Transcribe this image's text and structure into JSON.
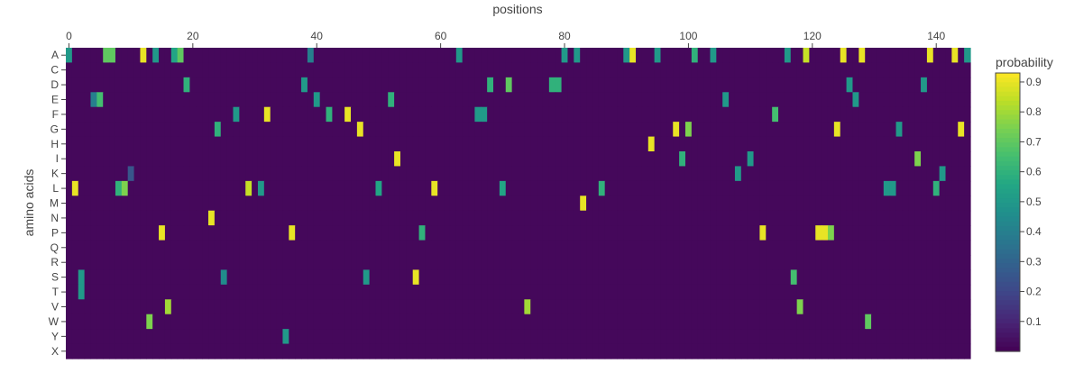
{
  "chart_data": {
    "type": "heatmap",
    "title": "",
    "xlabel": "positions",
    "ylabel": "amino acids",
    "x_axis_side": "top",
    "x_range": [
      0,
      145
    ],
    "x_ticks": [
      0,
      20,
      40,
      60,
      80,
      100,
      120,
      140
    ],
    "y_categories": [
      "A",
      "C",
      "D",
      "E",
      "F",
      "G",
      "H",
      "I",
      "K",
      "L",
      "M",
      "N",
      "P",
      "Q",
      "R",
      "S",
      "T",
      "V",
      "W",
      "Y",
      "X"
    ],
    "colorbar": {
      "title": "probability",
      "range": [
        0,
        0.93
      ],
      "ticks": [
        0.1,
        0.2,
        0.3,
        0.4,
        0.5,
        0.6,
        0.7,
        0.8,
        0.9
      ],
      "colorscale": "viridis"
    },
    "background_probability": 0.02,
    "high_cells": [
      {
        "x": 0,
        "y": "A",
        "v": 0.5
      },
      {
        "x": 1,
        "y": "L",
        "v": 0.9
      },
      {
        "x": 2,
        "y": "S",
        "v": 0.5
      },
      {
        "x": 2,
        "y": "T",
        "v": 0.5
      },
      {
        "x": 4,
        "y": "E",
        "v": 0.4
      },
      {
        "x": 5,
        "y": "E",
        "v": 0.65
      },
      {
        "x": 6,
        "y": "A",
        "v": 0.7
      },
      {
        "x": 7,
        "y": "A",
        "v": 0.7
      },
      {
        "x": 8,
        "y": "L",
        "v": 0.6
      },
      {
        "x": 9,
        "y": "L",
        "v": 0.75
      },
      {
        "x": 10,
        "y": "K",
        "v": 0.25
      },
      {
        "x": 12,
        "y": "A",
        "v": 0.9
      },
      {
        "x": 13,
        "y": "W",
        "v": 0.75
      },
      {
        "x": 14,
        "y": "A",
        "v": 0.5
      },
      {
        "x": 15,
        "y": "P",
        "v": 0.9
      },
      {
        "x": 16,
        "y": "V",
        "v": 0.8
      },
      {
        "x": 17,
        "y": "A",
        "v": 0.55
      },
      {
        "x": 18,
        "y": "A",
        "v": 0.7
      },
      {
        "x": 19,
        "y": "D",
        "v": 0.6
      },
      {
        "x": 23,
        "y": "N",
        "v": 0.9
      },
      {
        "x": 24,
        "y": "G",
        "v": 0.6
      },
      {
        "x": 25,
        "y": "S",
        "v": 0.45
      },
      {
        "x": 27,
        "y": "F",
        "v": 0.5
      },
      {
        "x": 29,
        "y": "L",
        "v": 0.85
      },
      {
        "x": 31,
        "y": "L",
        "v": 0.5
      },
      {
        "x": 32,
        "y": "F",
        "v": 0.9
      },
      {
        "x": 35,
        "y": "Y",
        "v": 0.5
      },
      {
        "x": 36,
        "y": "P",
        "v": 0.9
      },
      {
        "x": 38,
        "y": "D",
        "v": 0.5
      },
      {
        "x": 39,
        "y": "A",
        "v": 0.4
      },
      {
        "x": 40,
        "y": "E",
        "v": 0.5
      },
      {
        "x": 42,
        "y": "F",
        "v": 0.6
      },
      {
        "x": 45,
        "y": "F",
        "v": 0.9
      },
      {
        "x": 47,
        "y": "G",
        "v": 0.9
      },
      {
        "x": 48,
        "y": "S",
        "v": 0.5
      },
      {
        "x": 50,
        "y": "L",
        "v": 0.55
      },
      {
        "x": 52,
        "y": "E",
        "v": 0.6
      },
      {
        "x": 53,
        "y": "I",
        "v": 0.9
      },
      {
        "x": 56,
        "y": "S",
        "v": 0.9
      },
      {
        "x": 57,
        "y": "P",
        "v": 0.6
      },
      {
        "x": 59,
        "y": "L",
        "v": 0.9
      },
      {
        "x": 63,
        "y": "A",
        "v": 0.5
      },
      {
        "x": 66,
        "y": "F",
        "v": 0.5
      },
      {
        "x": 67,
        "y": "F",
        "v": 0.5
      },
      {
        "x": 68,
        "y": "D",
        "v": 0.6
      },
      {
        "x": 70,
        "y": "L",
        "v": 0.55
      },
      {
        "x": 71,
        "y": "D",
        "v": 0.7
      },
      {
        "x": 74,
        "y": "V",
        "v": 0.8
      },
      {
        "x": 78,
        "y": "D",
        "v": 0.6
      },
      {
        "x": 79,
        "y": "D",
        "v": 0.6
      },
      {
        "x": 80,
        "y": "A",
        "v": 0.5
      },
      {
        "x": 82,
        "y": "A",
        "v": 0.5
      },
      {
        "x": 83,
        "y": "M",
        "v": 0.9
      },
      {
        "x": 86,
        "y": "L",
        "v": 0.6
      },
      {
        "x": 90,
        "y": "A",
        "v": 0.5
      },
      {
        "x": 91,
        "y": "A",
        "v": 0.9
      },
      {
        "x": 94,
        "y": "H",
        "v": 0.9
      },
      {
        "x": 95,
        "y": "A",
        "v": 0.5
      },
      {
        "x": 98,
        "y": "G",
        "v": 0.9
      },
      {
        "x": 99,
        "y": "I",
        "v": 0.6
      },
      {
        "x": 100,
        "y": "G",
        "v": 0.75
      },
      {
        "x": 101,
        "y": "A",
        "v": 0.6
      },
      {
        "x": 104,
        "y": "A",
        "v": 0.5
      },
      {
        "x": 106,
        "y": "E",
        "v": 0.5
      },
      {
        "x": 108,
        "y": "K",
        "v": 0.5
      },
      {
        "x": 110,
        "y": "I",
        "v": 0.5
      },
      {
        "x": 112,
        "y": "P",
        "v": 0.9
      },
      {
        "x": 114,
        "y": "F",
        "v": 0.65
      },
      {
        "x": 116,
        "y": "A",
        "v": 0.5
      },
      {
        "x": 117,
        "y": "S",
        "v": 0.65
      },
      {
        "x": 118,
        "y": "V",
        "v": 0.75
      },
      {
        "x": 119,
        "y": "A",
        "v": 0.85
      },
      {
        "x": 121,
        "y": "P",
        "v": 0.9
      },
      {
        "x": 122,
        "y": "P",
        "v": 0.9
      },
      {
        "x": 123,
        "y": "P",
        "v": 0.75
      },
      {
        "x": 124,
        "y": "G",
        "v": 0.9
      },
      {
        "x": 125,
        "y": "A",
        "v": 0.9
      },
      {
        "x": 126,
        "y": "D",
        "v": 0.5
      },
      {
        "x": 127,
        "y": "E",
        "v": 0.5
      },
      {
        "x": 128,
        "y": "A",
        "v": 0.9
      },
      {
        "x": 129,
        "y": "W",
        "v": 0.7
      },
      {
        "x": 132,
        "y": "L",
        "v": 0.5
      },
      {
        "x": 133,
        "y": "L",
        "v": 0.5
      },
      {
        "x": 134,
        "y": "G",
        "v": 0.5
      },
      {
        "x": 137,
        "y": "I",
        "v": 0.75
      },
      {
        "x": 138,
        "y": "D",
        "v": 0.5
      },
      {
        "x": 139,
        "y": "A",
        "v": 0.9
      },
      {
        "x": 140,
        "y": "L",
        "v": 0.6
      },
      {
        "x": 141,
        "y": "K",
        "v": 0.5
      },
      {
        "x": 143,
        "y": "A",
        "v": 0.9
      },
      {
        "x": 144,
        "y": "G",
        "v": 0.9
      },
      {
        "x": 145,
        "y": "A",
        "v": 0.5
      }
    ]
  }
}
